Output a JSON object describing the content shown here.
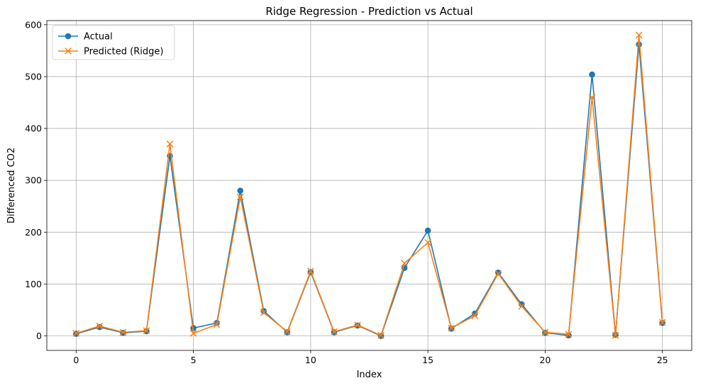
{
  "chart_data": {
    "type": "line",
    "title": "Ridge Regression - Prediction vs Actual",
    "xlabel": "Index",
    "ylabel": "Differenced CO2",
    "xlim": [
      -1.25,
      26.25
    ],
    "ylim": [
      -28,
      608
    ],
    "xticks": [
      0,
      5,
      10,
      15,
      20,
      25
    ],
    "yticks": [
      0,
      100,
      200,
      300,
      400,
      500,
      600
    ],
    "grid": true,
    "legend_position": "top-left",
    "x": [
      0,
      1,
      2,
      3,
      4,
      5,
      6,
      7,
      8,
      9,
      10,
      11,
      12,
      13,
      14,
      15,
      16,
      17,
      18,
      19,
      20,
      21,
      22,
      23,
      24,
      25
    ],
    "series": [
      {
        "name": "Actual",
        "color": "#1f77b4",
        "marker": "circle",
        "values": [
          4,
          17,
          6,
          9,
          347,
          15,
          25,
          280,
          48,
          7,
          123,
          7,
          20,
          0,
          131,
          203,
          14,
          43,
          122,
          61,
          6,
          1,
          504,
          2,
          562,
          25
        ]
      },
      {
        "name": "Predicted (Ridge)",
        "color": "#ff7f0e",
        "marker": "x",
        "values": [
          5,
          19,
          7,
          10,
          370,
          5,
          22,
          268,
          45,
          8,
          125,
          8,
          21,
          1,
          140,
          180,
          15,
          39,
          120,
          57,
          7,
          3,
          460,
          1,
          580,
          26
        ]
      }
    ]
  }
}
